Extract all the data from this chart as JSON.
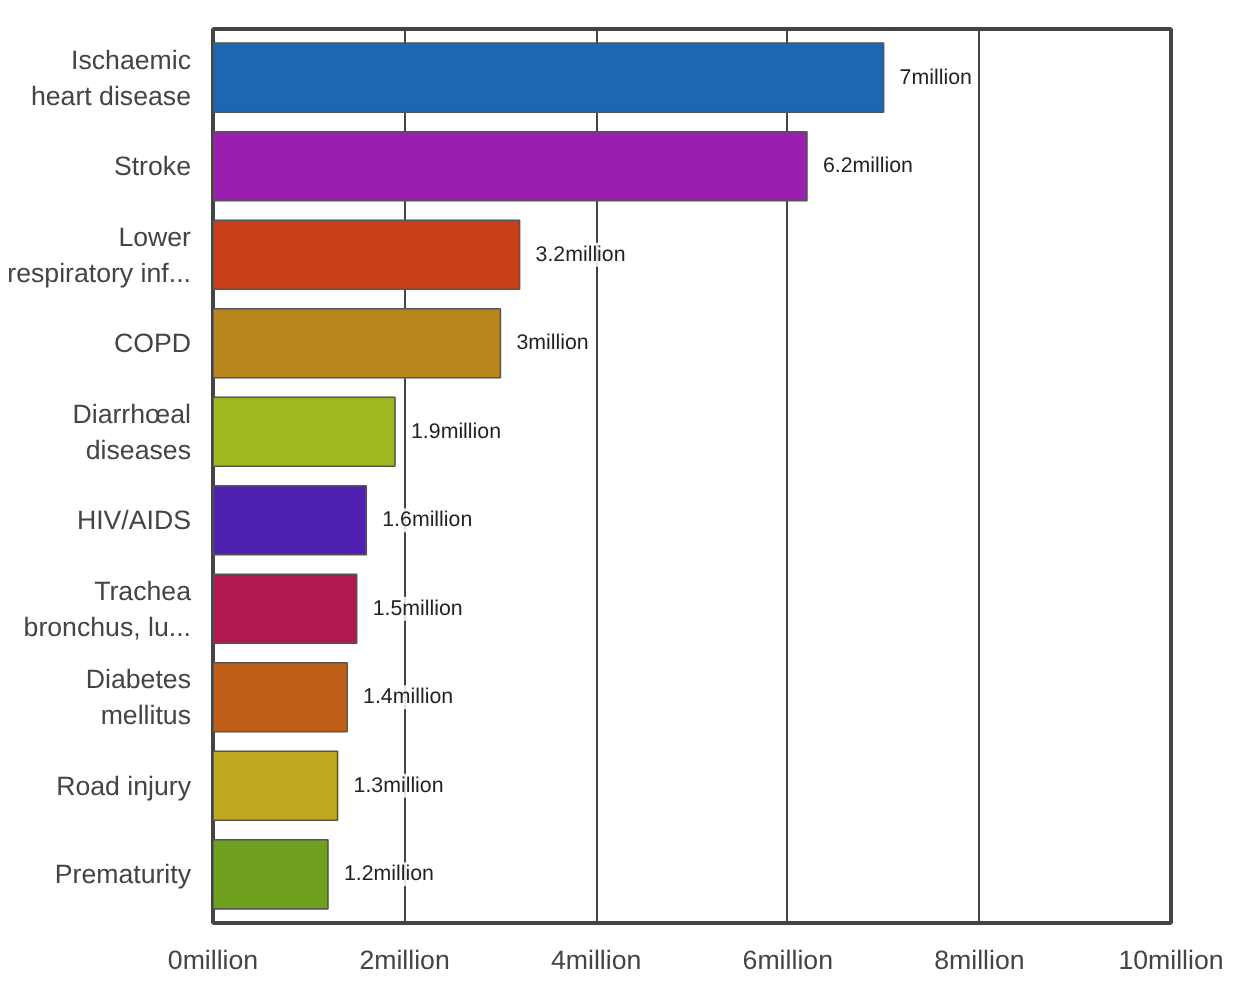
{
  "chart_data": {
    "type": "bar",
    "orientation": "horizontal",
    "categories": [
      "Ischaemic heart disease",
      "Stroke",
      "Lower respiratory inf...",
      "COPD",
      "Diarrhœal diseases",
      "HIV/AIDS",
      "Trachea bronchus, lu...",
      "Diabetes mellitus",
      "Road injury",
      "Prematurity"
    ],
    "values": [
      7,
      6.2,
      3.2,
      3,
      1.9,
      1.6,
      1.5,
      1.4,
      1.3,
      1.2
    ],
    "colors": [
      "#1f66b0",
      "#9b1fae",
      "#c8401a",
      "#b8861e",
      "#a0b820",
      "#5020b0",
      "#b01850",
      "#c06018",
      "#c0a820",
      "#70a020"
    ],
    "value_labels": [
      "7million",
      "6.2million",
      "3.2million",
      "3million",
      "1.9million",
      "1.6million",
      "1.5million",
      "1.4million",
      "1.3million",
      "1.2million"
    ],
    "xlim": [
      0,
      10
    ],
    "xticks": [
      {
        "value": 0,
        "label": "0million"
      },
      {
        "value": 2,
        "label": "2million"
      },
      {
        "value": 4,
        "label": "4million"
      },
      {
        "value": 6,
        "label": "6million"
      },
      {
        "value": 8,
        "label": "8million"
      },
      {
        "value": 10,
        "label": "10million"
      }
    ],
    "grid": "x"
  }
}
